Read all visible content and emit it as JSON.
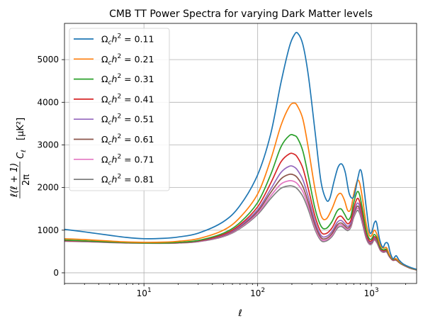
{
  "chart_data": {
    "type": "line",
    "title": "CMB TT Power Spectra for varying Dark Matter levels",
    "xlabel": "ℓ",
    "ylabel": "ℓ(ℓ + 1)/2π C_ℓ [μK²]",
    "ylabel_parts": {
      "numerator": "ℓ(ℓ + 1)",
      "denominator": "2π",
      "symbol": "C",
      "subscript": "ℓ",
      "unit": "[μK²]"
    },
    "xscale": "log",
    "xlim": [
      2,
      2500
    ],
    "ylim": [
      -250,
      5850
    ],
    "x_ticks": [
      {
        "value": 10,
        "base": "10",
        "exp": "1"
      },
      {
        "value": 100,
        "base": "10",
        "exp": "2"
      },
      {
        "value": 1000,
        "base": "10",
        "exp": "3"
      }
    ],
    "y_ticks": [
      0,
      1000,
      2000,
      3000,
      4000,
      5000
    ],
    "grid": true,
    "legend": {
      "placement": "upper-left",
      "entries": [
        {
          "symbol": "Ω",
          "sub": "c",
          "var": "h",
          "sup": "2",
          "eq": " = ",
          "value": "0.11"
        },
        {
          "symbol": "Ω",
          "sub": "c",
          "var": "h",
          "sup": "2",
          "eq": " = ",
          "value": "0.21"
        },
        {
          "symbol": "Ω",
          "sub": "c",
          "var": "h",
          "sup": "2",
          "eq": " = ",
          "value": "0.31"
        },
        {
          "symbol": "Ω",
          "sub": "c",
          "var": "h",
          "sup": "2",
          "eq": " = ",
          "value": "0.41"
        },
        {
          "symbol": "Ω",
          "sub": "c",
          "var": "h",
          "sup": "2",
          "eq": " = ",
          "value": "0.51"
        },
        {
          "symbol": "Ω",
          "sub": "c",
          "var": "h",
          "sup": "2",
          "eq": " = ",
          "value": "0.61"
        },
        {
          "symbol": "Ω",
          "sub": "c",
          "var": "h",
          "sup": "2",
          "eq": " = ",
          "value": "0.71"
        },
        {
          "symbol": "Ω",
          "sub": "c",
          "var": "h",
          "sup": "2",
          "eq": " = ",
          "value": "0.81"
        }
      ]
    },
    "series": [
      {
        "name": "Ωch² = 0.11",
        "color": "#1f77b4",
        "x": [
          2,
          3,
          5,
          7,
          10,
          15,
          20,
          30,
          50,
          70,
          100,
          130,
          160,
          190,
          210,
          225,
          250,
          280,
          320,
          360,
          400,
          430,
          470,
          510,
          550,
          590,
          640,
          700,
          760,
          800,
          840,
          900,
          960,
          1010,
          1060,
          1110,
          1180,
          1260,
          1330,
          1400,
          1470,
          1550,
          1650,
          1750,
          1900,
          2100,
          2300,
          2500
        ],
        "y": [
          1020,
          960,
          880,
          830,
          800,
          810,
          840,
          930,
          1200,
          1580,
          2300,
          3250,
          4450,
          5300,
          5580,
          5620,
          5350,
          4600,
          3300,
          2150,
          1720,
          1740,
          2150,
          2480,
          2550,
          2350,
          1850,
          1780,
          2220,
          2420,
          2200,
          1550,
          980,
          960,
          1170,
          1180,
          790,
          600,
          700,
          680,
          460,
          330,
          400,
          300,
          210,
          150,
          110,
          80
        ]
      },
      {
        "name": "Ωch² = 0.21",
        "color": "#ff7f0e",
        "x": [
          2,
          3,
          5,
          7,
          10,
          15,
          20,
          30,
          50,
          70,
          100,
          130,
          160,
          190,
          210,
          225,
          250,
          280,
          320,
          360,
          400,
          450,
          500,
          540,
          580,
          620,
          660,
          700,
          750,
          790,
          840,
          900,
          960,
          1010,
          1060,
          1120,
          1200,
          1280,
          1360,
          1440,
          1540,
          1650,
          1800,
          2000,
          2200,
          2500
        ],
        "y": [
          800,
          780,
          745,
          725,
          715,
          720,
          740,
          800,
          1000,
          1300,
          1850,
          2650,
          3450,
          3900,
          3980,
          3900,
          3600,
          2900,
          1950,
          1350,
          1260,
          1500,
          1800,
          1860,
          1700,
          1460,
          1500,
          1850,
          2150,
          2100,
          1700,
          1150,
          880,
          880,
          1000,
          900,
          640,
          580,
          590,
          430,
          330,
          330,
          240,
          170,
          120,
          75
        ]
      },
      {
        "name": "Ωch² = 0.31",
        "color": "#2ca02c",
        "x": [
          2,
          3,
          5,
          7,
          10,
          15,
          20,
          30,
          50,
          70,
          100,
          130,
          160,
          190,
          210,
          225,
          250,
          280,
          320,
          360,
          400,
          450,
          500,
          540,
          580,
          620,
          660,
          700,
          750,
          790,
          840,
          900,
          960,
          1010,
          1060,
          1120,
          1200,
          1280,
          1360,
          1440,
          1540,
          1650,
          1800,
          2000,
          2200,
          2500
        ],
        "y": [
          770,
          750,
          725,
          710,
          700,
          700,
          715,
          760,
          930,
          1180,
          1650,
          2300,
          2950,
          3220,
          3220,
          3150,
          2850,
          2250,
          1500,
          1100,
          1040,
          1200,
          1450,
          1500,
          1380,
          1250,
          1330,
          1650,
          1900,
          1820,
          1450,
          1000,
          800,
          800,
          900,
          820,
          590,
          540,
          550,
          410,
          320,
          320,
          230,
          165,
          115,
          72
        ]
      },
      {
        "name": "Ωch² = 0.41",
        "color": "#d62728",
        "x": [
          2,
          3,
          5,
          7,
          10,
          15,
          20,
          30,
          50,
          70,
          100,
          130,
          160,
          190,
          210,
          225,
          250,
          280,
          320,
          360,
          400,
          450,
          500,
          540,
          580,
          620,
          660,
          700,
          750,
          790,
          840,
          900,
          960,
          1010,
          1060,
          1120,
          1200,
          1280,
          1360,
          1440,
          1540,
          1650,
          1800,
          2000,
          2200,
          2500
        ],
        "y": [
          760,
          745,
          722,
          708,
          700,
          698,
          710,
          750,
          900,
          1130,
          1550,
          2100,
          2600,
          2790,
          2780,
          2700,
          2450,
          1950,
          1320,
          960,
          920,
          1050,
          1280,
          1330,
          1240,
          1150,
          1230,
          1520,
          1740,
          1660,
          1330,
          930,
          750,
          760,
          850,
          780,
          570,
          520,
          530,
          400,
          310,
          310,
          225,
          160,
          112,
          70
        ]
      },
      {
        "name": "Ωch² = 0.51",
        "color": "#9467bd",
        "x": [
          2,
          3,
          5,
          7,
          10,
          15,
          20,
          30,
          50,
          70,
          100,
          130,
          160,
          190,
          210,
          225,
          250,
          280,
          320,
          360,
          400,
          450,
          500,
          540,
          580,
          620,
          660,
          700,
          750,
          790,
          840,
          900,
          960,
          1010,
          1060,
          1120,
          1200,
          1280,
          1360,
          1440,
          1540,
          1650,
          1800,
          2000,
          2200,
          2500
        ],
        "y": [
          755,
          740,
          718,
          705,
          698,
          696,
          706,
          742,
          880,
          1100,
          1480,
          1960,
          2350,
          2500,
          2480,
          2400,
          2180,
          1760,
          1200,
          880,
          850,
          970,
          1180,
          1230,
          1160,
          1090,
          1170,
          1430,
          1630,
          1560,
          1250,
          880,
          720,
          730,
          820,
          750,
          555,
          505,
          515,
          390,
          305,
          305,
          222,
          158,
          110,
          69
        ]
      },
      {
        "name": "Ωch² = 0.61",
        "color": "#8c564b",
        "x": [
          2,
          3,
          5,
          7,
          10,
          15,
          20,
          30,
          50,
          70,
          100,
          130,
          160,
          190,
          210,
          225,
          250,
          280,
          320,
          360,
          400,
          450,
          500,
          540,
          580,
          620,
          660,
          700,
          750,
          790,
          840,
          900,
          960,
          1010,
          1060,
          1120,
          1200,
          1280,
          1360,
          1440,
          1540,
          1650,
          1800,
          2000,
          2200,
          2500
        ],
        "y": [
          750,
          737,
          716,
          704,
          697,
          695,
          704,
          738,
          870,
          1080,
          1440,
          1880,
          2200,
          2310,
          2290,
          2220,
          2020,
          1640,
          1120,
          830,
          805,
          920,
          1120,
          1170,
          1110,
          1050,
          1130,
          1380,
          1560,
          1490,
          1200,
          850,
          700,
          710,
          800,
          730,
          545,
          495,
          505,
          385,
          300,
          300,
          220,
          156,
          108,
          68
        ]
      },
      {
        "name": "Ωch² = 0.71",
        "color": "#e377c2",
        "x": [
          2,
          3,
          5,
          7,
          10,
          15,
          20,
          30,
          50,
          70,
          100,
          130,
          160,
          190,
          210,
          225,
          250,
          280,
          320,
          360,
          400,
          450,
          500,
          540,
          580,
          620,
          660,
          700,
          750,
          790,
          840,
          900,
          960,
          1010,
          1060,
          1120,
          1200,
          1280,
          1360,
          1440,
          1540,
          1650,
          1800,
          2000,
          2200,
          2500
        ],
        "y": [
          745,
          733,
          713,
          702,
          696,
          694,
          702,
          734,
          860,
          1060,
          1400,
          1800,
          2080,
          2160,
          2140,
          2080,
          1900,
          1550,
          1060,
          790,
          770,
          880,
          1080,
          1130,
          1070,
          1020,
          1100,
          1340,
          1510,
          1440,
          1160,
          830,
          685,
          695,
          785,
          715,
          535,
          488,
          498,
          380,
          297,
          297,
          218,
          155,
          107,
          67
        ]
      },
      {
        "name": "Ωch² = 0.81",
        "color": "#7f7f7f",
        "x": [
          2,
          3,
          5,
          7,
          10,
          15,
          20,
          30,
          50,
          70,
          100,
          130,
          160,
          190,
          210,
          225,
          250,
          280,
          320,
          360,
          400,
          450,
          500,
          540,
          580,
          620,
          660,
          700,
          750,
          790,
          840,
          900,
          960,
          1010,
          1060,
          1120,
          1200,
          1280,
          1360,
          1440,
          1540,
          1650,
          1800,
          2000,
          2200,
          2500
        ],
        "y": [
          740,
          730,
          710,
          700,
          695,
          693,
          700,
          730,
          850,
          1040,
          1370,
          1740,
          1980,
          2040,
          2020,
          1960,
          1790,
          1470,
          1010,
          760,
          745,
          850,
          1040,
          1090,
          1040,
          990,
          1070,
          1300,
          1460,
          1390,
          1120,
          810,
          670,
          680,
          770,
          700,
          525,
          480,
          490,
          375,
          294,
          294,
          216,
          154,
          106,
          66
        ]
      }
    ]
  }
}
